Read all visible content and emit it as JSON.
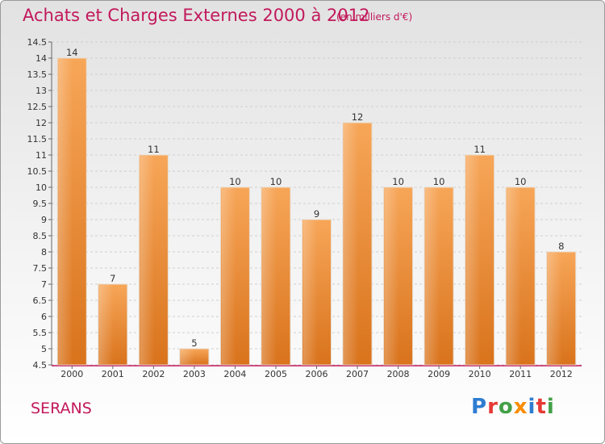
{
  "title": "Achats et Charges Externes 2000 à 2012",
  "subtitle": "(en milliers d'€)",
  "commune": "SERANS",
  "logo": {
    "letters": [
      {
        "ch": "P",
        "color": "#2e7dd1"
      },
      {
        "ch": "r",
        "color": "#e53935"
      },
      {
        "ch": "o",
        "color": "#43a047"
      },
      {
        "ch": "x",
        "color": "#fb8c00"
      },
      {
        "ch": "i",
        "color": "#2e7dd1"
      },
      {
        "ch": "t",
        "color": "#e53935"
      },
      {
        "ch": "i",
        "color": "#43a047"
      }
    ]
  },
  "chart_data": {
    "type": "bar",
    "title": "Achats et Charges Externes 2000 à 2012",
    "subtitle": "(en milliers d'€)",
    "categories": [
      "2000",
      "2001",
      "2002",
      "2003",
      "2004",
      "2005",
      "2006",
      "2007",
      "2008",
      "2009",
      "2010",
      "2011",
      "2012"
    ],
    "values": [
      14,
      7,
      11,
      5,
      10,
      10,
      9,
      12,
      10,
      10,
      11,
      10,
      8
    ],
    "ylim": [
      4.5,
      14.5
    ],
    "yticks": [
      4.5,
      5,
      5.5,
      6,
      6.5,
      7,
      7.5,
      8,
      8.5,
      9,
      9.5,
      10,
      10.5,
      11,
      11.5,
      12,
      12.5,
      13,
      13.5,
      14,
      14.5
    ],
    "grid": true,
    "bar_color": "#f0923a",
    "axis_color": "#c2185b"
  }
}
